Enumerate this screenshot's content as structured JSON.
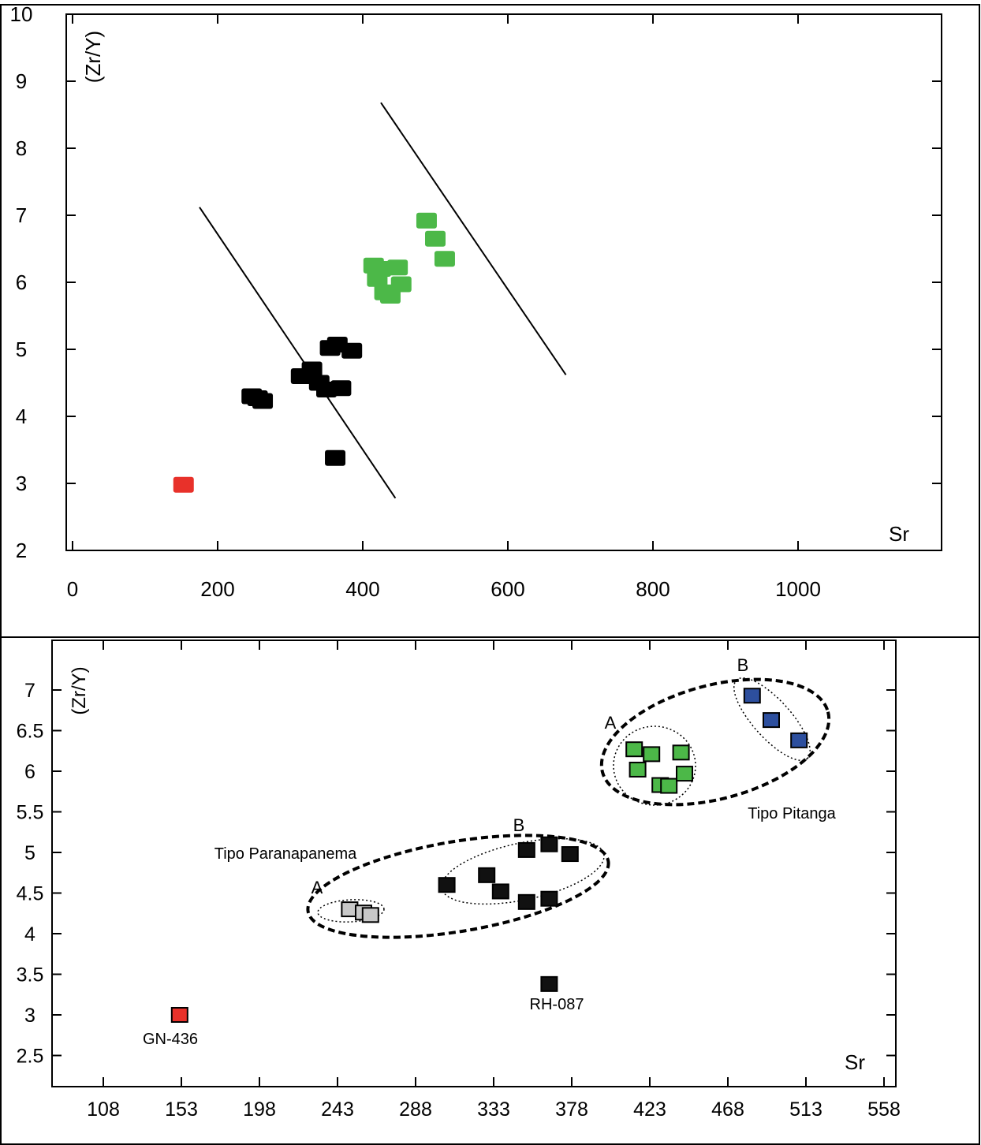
{
  "chart_data": [
    {
      "type": "scatter",
      "title": "",
      "xlabel": "Sr",
      "ylabel": "(Zr/Y)",
      "xlim": [
        0,
        1200
      ],
      "ylim": [
        2,
        10
      ],
      "xticks": [
        0,
        200,
        400,
        600,
        800,
        1000
      ],
      "yticks": [
        2,
        3,
        4,
        5,
        6,
        7,
        8,
        9,
        10
      ],
      "grid": false,
      "series": [
        {
          "color": "#000000",
          "points": [
            [
              247,
              4.3
            ],
            [
              255,
              4.27
            ],
            [
              262,
              4.23
            ],
            [
              315,
              4.6
            ],
            [
              330,
              4.7
            ],
            [
              340,
              4.5
            ],
            [
              350,
              4.4
            ],
            [
              355,
              5.02
            ],
            [
              365,
              5.07
            ],
            [
              370,
              4.42
            ],
            [
              385,
              4.98
            ],
            [
              362,
              3.38
            ]
          ]
        },
        {
          "color": "#4cb848",
          "points": [
            [
              415,
              6.25
            ],
            [
              420,
              6.05
            ],
            [
              425,
              6.2
            ],
            [
              430,
              5.85
            ],
            [
              438,
              5.8
            ],
            [
              448,
              6.22
            ],
            [
              453,
              5.97
            ],
            [
              488,
              6.92
            ],
            [
              500,
              6.65
            ],
            [
              513,
              6.35
            ]
          ]
        },
        {
          "color": "#e8312a",
          "points": [
            [
              153,
              2.98
            ]
          ]
        }
      ],
      "lines": [
        {
          "from": [
            175,
            7.12
          ],
          "to": [
            445,
            2.78
          ]
        },
        {
          "from": [
            425,
            8.68
          ],
          "to": [
            680,
            4.62
          ]
        }
      ]
    },
    {
      "type": "scatter",
      "title": "",
      "xlabel": "Sr",
      "ylabel": "(Zr/Y)",
      "xlim": [
        85,
        573
      ],
      "ylim": [
        2.1,
        7.6
      ],
      "xticks": [
        108,
        153,
        198,
        243,
        288,
        333,
        378,
        423,
        468,
        513,
        558
      ],
      "yticks": [
        2.5,
        3,
        3.5,
        4,
        4.5,
        5,
        5.5,
        6,
        6.5,
        7
      ],
      "grid": false,
      "series": [
        {
          "color": "#c8c8c8",
          "points": [
            [
              250,
              4.3
            ],
            [
              258,
              4.26
            ],
            [
              262,
              4.23
            ]
          ]
        },
        {
          "color": "#111111",
          "points": [
            [
              306,
              4.6
            ],
            [
              329,
              4.72
            ],
            [
              337,
              4.52
            ],
            [
              352,
              5.03
            ],
            [
              352,
              4.39
            ],
            [
              365,
              5.1
            ],
            [
              365,
              4.43
            ],
            [
              377,
              4.98
            ],
            [
              365,
              3.38
            ]
          ]
        },
        {
          "color": "#4cb848",
          "points": [
            [
              414,
              6.27
            ],
            [
              416,
              6.02
            ],
            [
              424,
              6.21
            ],
            [
              429,
              5.83
            ],
            [
              434,
              5.82
            ],
            [
              441,
              6.23
            ],
            [
              443,
              5.97
            ]
          ]
        },
        {
          "color": "#2d4f9e",
          "points": [
            [
              482,
              6.93
            ],
            [
              493,
              6.63
            ],
            [
              509,
              6.38
            ]
          ]
        },
        {
          "color": "#e8312a",
          "points": [
            [
              152,
              3.0
            ]
          ]
        }
      ],
      "annotations": {
        "paranapanema": "Tipo Paranapanema",
        "pitanga": "Tipo Pitanga",
        "group_a_low": "A",
        "group_b_low": "B",
        "group_a_high": "A",
        "group_b_high": "B",
        "rh087": "RH-087",
        "gn436": "GN-436"
      }
    }
  ]
}
